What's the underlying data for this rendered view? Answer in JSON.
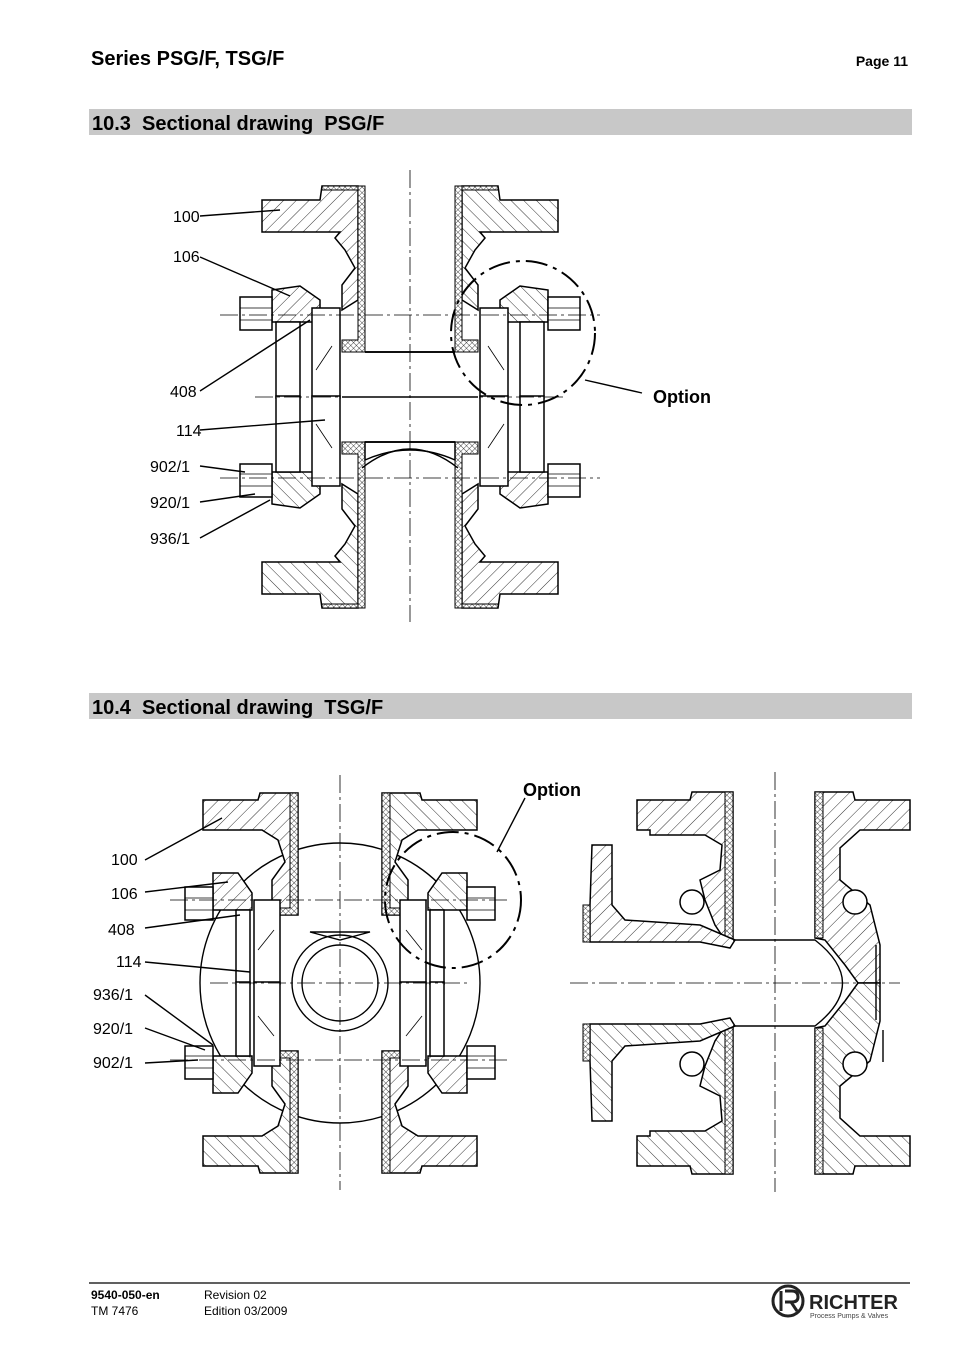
{
  "header": {
    "title": "Series PSG/F, TSG/F",
    "page": "Page 11"
  },
  "sections": [
    {
      "heading": "10.3  Sectional drawing  PSG/F",
      "labels": [
        "100",
        "106",
        "408",
        "114",
        "902/1",
        "920/1",
        "936/1"
      ],
      "option": "Option"
    },
    {
      "heading": "10.4  Sectional drawing  TSG/F",
      "labels": [
        "100",
        "106",
        "408",
        "114",
        "936/1",
        "920/1",
        "902/1"
      ],
      "option": "Option"
    }
  ],
  "footer": {
    "doc": "9540-050-en",
    "tm": "TM 7476",
    "revision": "Revision 02",
    "edition": "Edition 03/2009",
    "logo": "RICHTER",
    "tagline": "Process Pumps & Valves"
  }
}
